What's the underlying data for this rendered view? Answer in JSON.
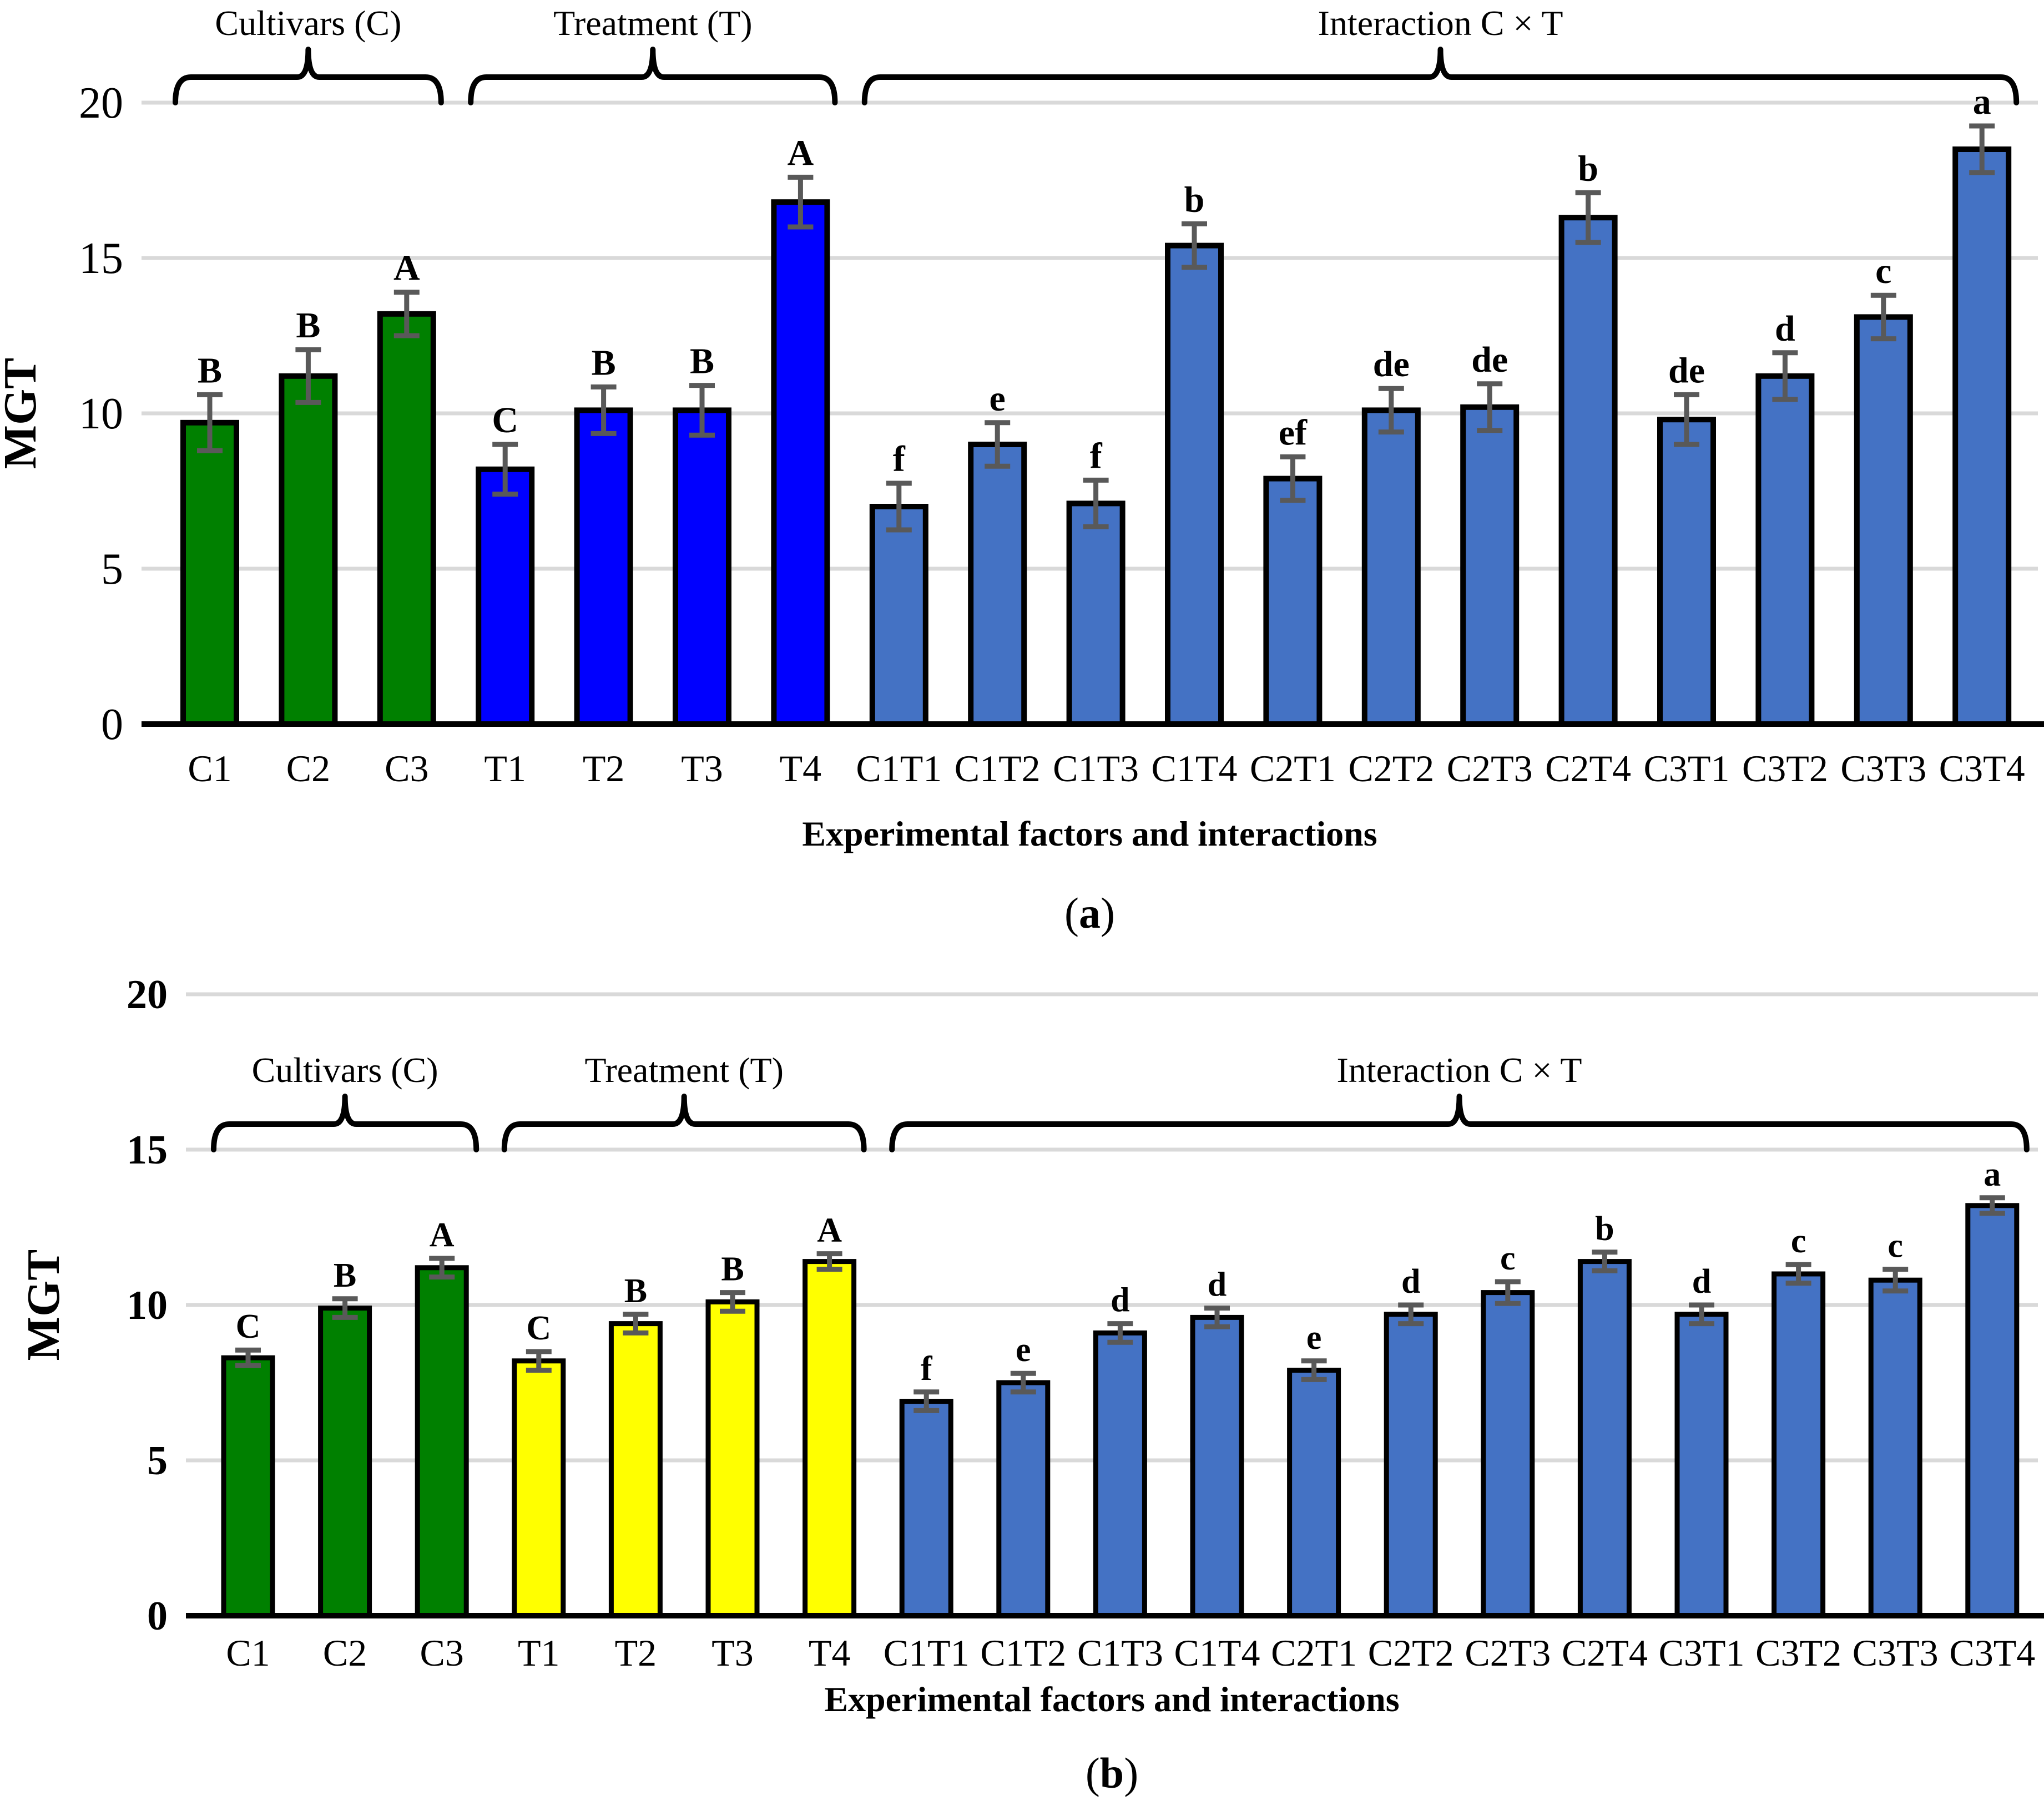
{
  "figure": {
    "ylabel": "MGT",
    "xlabel": "Experimental factors and interactions",
    "panel_labels": [
      "a",
      "b"
    ],
    "group_labels": [
      "Cultivars (C)",
      "Treatment (T)",
      "Interaction C × T"
    ],
    "colors": {
      "cultivars_green": "#008000",
      "treatment_blue": "#0000FF",
      "treatment_yellow": "#FFFF00",
      "interaction_blue": "#4472C4",
      "gridline_gray": "#D9D9D9",
      "error_bar_gray": "#595959",
      "axis_black": "#000000",
      "background": "#FFFFFF"
    }
  },
  "chart_data": [
    {
      "type": "bar",
      "panel": "a",
      "title": "",
      "ylabel": "MGT",
      "xlabel": "Experimental factors and interactions",
      "ylim": [
        0,
        20
      ],
      "yticks": [
        0,
        5,
        10,
        15,
        20
      ],
      "grid": true,
      "legend": "none",
      "categories": [
        "C1",
        "C2",
        "C3",
        "T1",
        "T2",
        "T3",
        "T4",
        "C1T1",
        "C1T2",
        "C1T3",
        "C1T4",
        "C2T1",
        "C2T2",
        "C2T3",
        "C2T4",
        "C3T1",
        "C3T2",
        "C3T3",
        "C3T4"
      ],
      "values": [
        9.7,
        11.2,
        13.2,
        8.2,
        10.1,
        10.1,
        16.8,
        7.0,
        9.0,
        7.1,
        15.4,
        7.9,
        10.1,
        10.2,
        16.3,
        9.8,
        11.2,
        13.1,
        18.5
      ],
      "errors": [
        0.9,
        0.85,
        0.7,
        0.8,
        0.75,
        0.8,
        0.8,
        0.75,
        0.7,
        0.75,
        0.7,
        0.7,
        0.7,
        0.75,
        0.8,
        0.8,
        0.75,
        0.7,
        0.75
      ],
      "letters": [
        "B",
        "B",
        "A",
        "C",
        "B",
        "B",
        "A",
        "f",
        "e",
        "f",
        "b",
        "ef",
        "de",
        "de",
        "b",
        "de",
        "d",
        "c",
        "a"
      ],
      "bar_colors": [
        "#008000",
        "#008000",
        "#008000",
        "#0000FF",
        "#0000FF",
        "#0000FF",
        "#0000FF",
        "#4472C4",
        "#4472C4",
        "#4472C4",
        "#4472C4",
        "#4472C4",
        "#4472C4",
        "#4472C4",
        "#4472C4",
        "#4472C4",
        "#4472C4",
        "#4472C4",
        "#4472C4"
      ],
      "groups": [
        {
          "label": "Cultivars (C)",
          "start": 0,
          "end": 2,
          "brace_at": 20
        },
        {
          "label": "Treatment (T)",
          "start": 3,
          "end": 6,
          "brace_at": 20
        },
        {
          "label": "Interaction C × T",
          "start": 7,
          "end": 18,
          "brace_at": 20
        }
      ]
    },
    {
      "type": "bar",
      "panel": "b",
      "title": "",
      "ylabel": "MGT",
      "xlabel": "Experimental factors and interactions",
      "ylim": [
        0,
        20
      ],
      "yticks": [
        0,
        5,
        10,
        15,
        20
      ],
      "grid": true,
      "legend": "none",
      "categories": [
        "C1",
        "C2",
        "C3",
        "T1",
        "T2",
        "T3",
        "T4",
        "C1T1",
        "C1T2",
        "C1T3",
        "C1T4",
        "C2T1",
        "C2T2",
        "C2T3",
        "C2T4",
        "C3T1",
        "C3T2",
        "C3T3",
        "C3T4"
      ],
      "values": [
        8.3,
        9.9,
        11.2,
        8.2,
        9.4,
        10.1,
        11.4,
        6.9,
        7.5,
        9.1,
        9.6,
        7.9,
        9.7,
        10.4,
        11.4,
        9.7,
        11.0,
        10.8,
        13.2
      ],
      "errors": [
        0.25,
        0.3,
        0.3,
        0.3,
        0.3,
        0.3,
        0.25,
        0.3,
        0.3,
        0.3,
        0.3,
        0.3,
        0.3,
        0.35,
        0.3,
        0.3,
        0.3,
        0.35,
        0.25
      ],
      "letters": [
        "C",
        "B",
        "A",
        "C",
        "B",
        "B",
        "A",
        "f",
        "e",
        "d",
        "d",
        "e",
        "d",
        "c",
        "b",
        "d",
        "c",
        "c",
        "a"
      ],
      "bar_colors": [
        "#008000",
        "#008000",
        "#008000",
        "#FFFF00",
        "#FFFF00",
        "#FFFF00",
        "#FFFF00",
        "#4472C4",
        "#4472C4",
        "#4472C4",
        "#4472C4",
        "#4472C4",
        "#4472C4",
        "#4472C4",
        "#4472C4",
        "#4472C4",
        "#4472C4",
        "#4472C4",
        "#4472C4"
      ],
      "groups": [
        {
          "label": "Cultivars (C)",
          "start": 0,
          "end": 2,
          "brace_at": 15
        },
        {
          "label": "Treatment (T)",
          "start": 3,
          "end": 6,
          "brace_at": 15
        },
        {
          "label": "Interaction C × T",
          "start": 7,
          "end": 18,
          "brace_at": 15
        }
      ]
    }
  ]
}
